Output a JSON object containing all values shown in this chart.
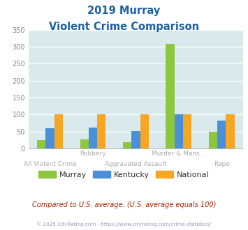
{
  "title_line1": "2019 Murray",
  "title_line2": "Violent Crime Comparison",
  "x_labels_row1": [
    "",
    "Robbery",
    "",
    "Murder & Mans...",
    ""
  ],
  "x_labels_row2": [
    "All Violent Crime",
    "",
    "Aggravated Assault",
    "",
    "Rape"
  ],
  "murray": [
    25,
    26,
    18,
    308,
    50
  ],
  "kentucky": [
    59,
    62,
    51,
    100,
    83
  ],
  "national": [
    100,
    100,
    100,
    100,
    100
  ],
  "murray_color": "#8dc63f",
  "kentucky_color": "#4a90d9",
  "national_color": "#f5a623",
  "bg_color": "#daeaec",
  "ylim": [
    0,
    350
  ],
  "yticks": [
    0,
    50,
    100,
    150,
    200,
    250,
    300,
    350
  ],
  "title_color": "#1a5fa8",
  "footer_text": "Compared to U.S. average. (U.S. average equals 100)",
  "footer_color": "#aa2200",
  "copyright_text": "© 2025 CityRating.com - https://www.cityrating.com/crime-statistics/",
  "copyright_color": "#9999bb",
  "legend_labels": [
    "Murray",
    "Kentucky",
    "National"
  ],
  "grid_color": "#ffffff",
  "tick_color": "#aaaaaa",
  "label_color": "#aaaaaa"
}
